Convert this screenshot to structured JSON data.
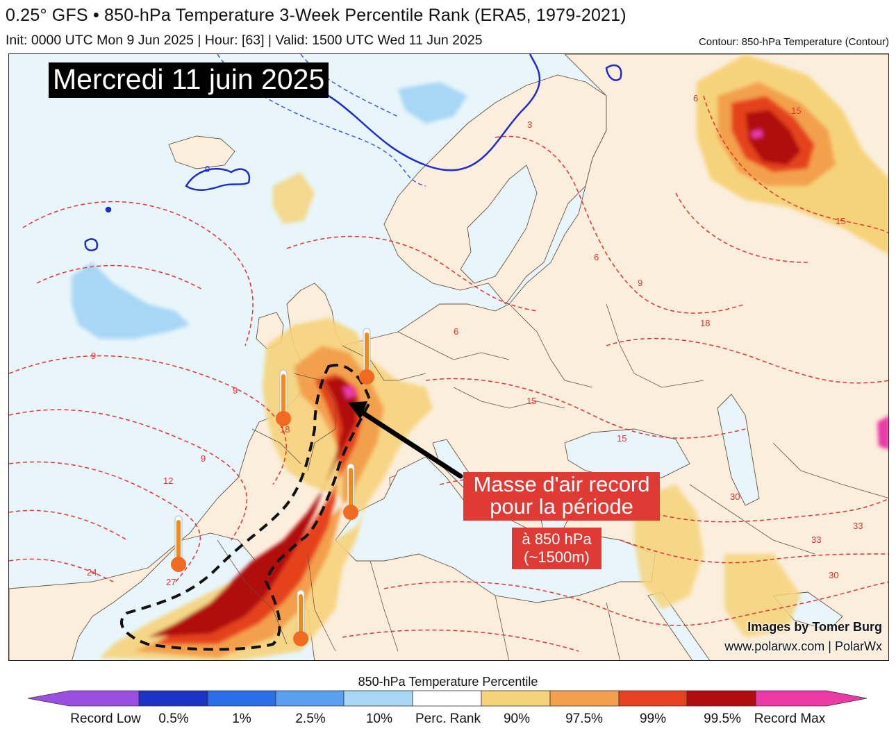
{
  "header": {
    "title": "0.25° GFS • 850-hPa Temperature 3-Week Percentile Rank (ERA5, 1979-2021)",
    "subtitle": "Init: 0000 UTC Mon 9 Jun 2025 | Hour: [63] | Valid: 1500 UTC Wed 11 Jun 2025",
    "contour_note": "Contour: 850-hPa Temperature (Contour)"
  },
  "map": {
    "date_banner": "Mercredi 11 juin 2025",
    "annotation_main_line1": "Masse d'air record",
    "annotation_main_line2": "pour la période",
    "annotation_sub_line1": "à 850 hPa",
    "annotation_sub_line2": "(~1500m)",
    "contour_labels": [
      "0",
      "3",
      "6",
      "9",
      "12",
      "15",
      "18",
      "24",
      "27",
      "30",
      "33"
    ],
    "thermometer_icons": [
      "thermometer-icon",
      "thermometer-icon",
      "thermometer-icon",
      "thermometer-icon",
      "thermometer-icon"
    ],
    "credit_line1": "Images by Tomer Burg",
    "credit_line2": "www.polarwx.com | PolarWx"
  },
  "legend": {
    "title": "850-hPa Temperature Percentile",
    "labels": [
      "Record Low",
      "0.5%",
      "1%",
      "2.5%",
      "10%",
      "Perc. Rank",
      "90%",
      "97.5%",
      "99%",
      "99.5%",
      "Record Max"
    ],
    "colors": [
      "#9b4fe0",
      "#1c33c4",
      "#2a6ee8",
      "#5aa0f0",
      "#a8d6f5",
      "#ffffff",
      "#f6d37a",
      "#f3a04e",
      "#e5431e",
      "#b10c10",
      "#e93aa6"
    ]
  },
  "colors": {
    "ocean": "#e8f6fb",
    "land": "#fbeedd",
    "contour_warm": "#e8302e",
    "contour_freezing": "#1f2ad0",
    "contour_cold": "#3550d8",
    "arrow": "#000000",
    "annotation_bg": "#e03a35"
  }
}
